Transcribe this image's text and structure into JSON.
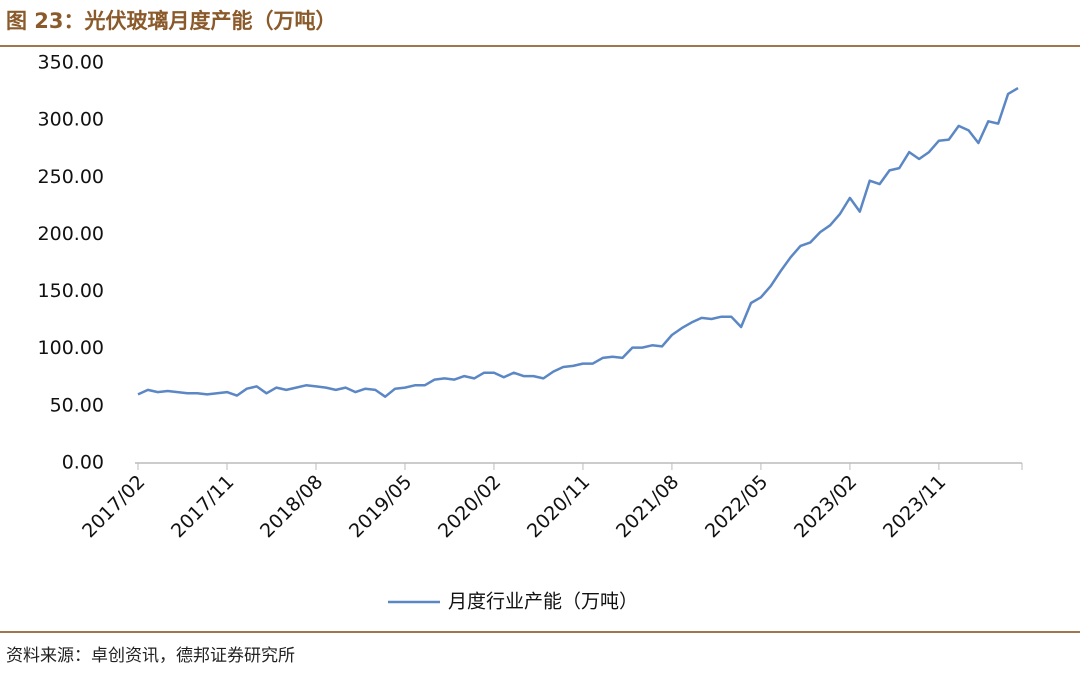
{
  "chart_data": {
    "type": "line",
    "title": "图 23：光伏玻璃月度产能（万吨）",
    "source": "资料来源：卓创资讯，德邦证券研究所",
    "categories": [
      "2017/02",
      null,
      null,
      null,
      null,
      null,
      null,
      null,
      null,
      "2017/11",
      null,
      null,
      null,
      null,
      null,
      null,
      null,
      null,
      "2018/08",
      null,
      null,
      null,
      null,
      null,
      null,
      null,
      null,
      "2019/05",
      null,
      null,
      null,
      null,
      null,
      null,
      null,
      null,
      "2020/02",
      null,
      null,
      null,
      null,
      null,
      null,
      null,
      null,
      "2020/11",
      null,
      null,
      null,
      null,
      null,
      null,
      null,
      null,
      "2021/08",
      null,
      null,
      null,
      null,
      null,
      null,
      null,
      null,
      "2022/05",
      null,
      null,
      null,
      null,
      null,
      null,
      null,
      null,
      "2023/02",
      null,
      null,
      null,
      null,
      null,
      null,
      null,
      null,
      "2023/11",
      null,
      null,
      null,
      null,
      null,
      null,
      null,
      null
    ],
    "series": [
      {
        "name": "月度行业产能（万吨）",
        "color": "#5b87c5",
        "values": [
          60,
          64,
          62,
          63,
          62,
          61,
          61,
          60,
          61,
          62,
          59,
          65,
          67,
          61,
          66,
          64,
          66,
          68,
          67,
          66,
          64,
          66,
          62,
          65,
          64,
          58,
          65,
          66,
          68,
          68,
          73,
          74,
          73,
          76,
          74,
          79,
          79,
          75,
          79,
          76,
          76,
          74,
          80,
          84,
          85,
          87,
          87,
          92,
          93,
          92,
          101,
          101,
          103,
          102,
          112,
          118,
          123,
          127,
          126,
          128,
          128,
          119,
          140,
          145,
          155,
          168,
          180,
          190,
          193,
          202,
          208,
          218,
          232,
          220,
          247,
          244,
          256,
          258,
          272,
          266,
          272,
          282,
          283,
          295,
          291,
          280,
          299,
          297,
          323,
          328
        ]
      }
    ],
    "ylim": [
      0,
      350
    ],
    "yticks": [
      {
        "value": 0,
        "label": "0.00"
      },
      {
        "value": 50,
        "label": "50.00"
      },
      {
        "value": 100,
        "label": "100.00"
      },
      {
        "value": 150,
        "label": "150.00"
      },
      {
        "value": 200,
        "label": "200.00"
      },
      {
        "value": 250,
        "label": "250.00"
      },
      {
        "value": 300,
        "label": "300.00"
      },
      {
        "value": 350,
        "label": "350.00"
      }
    ],
    "legend": "bottom"
  }
}
